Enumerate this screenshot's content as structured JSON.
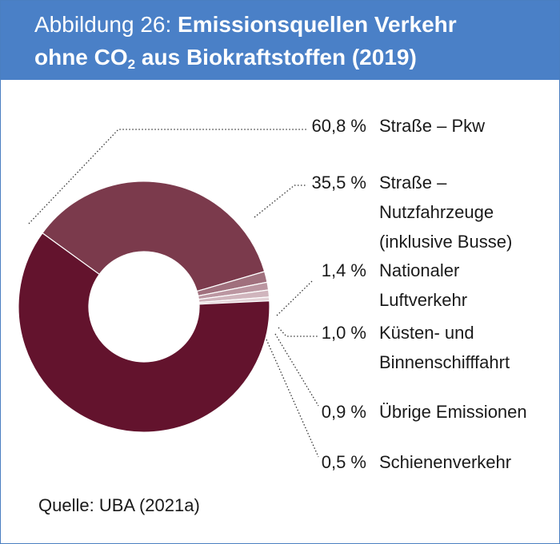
{
  "header": {
    "figure_label": "Abbildung 26:",
    "title_line1": "Emissionsquellen Verkehr",
    "title_line2_pre": "ohne CO",
    "title_line2_sub": "2",
    "title_line2_post": " aus Biokraftstoffen (2019)"
  },
  "source": "Quelle: UBA (2021a)",
  "colors": {
    "header_bg": "#4a80c7",
    "slice_pkw": "#63132d",
    "slice_nutzfahrzeuge": "#7b3a4c",
    "slice_small": [
      "#a0707d",
      "#bb96a1",
      "#d0b5bd",
      "#e3d2d7"
    ]
  },
  "chart_data": {
    "type": "pie",
    "variant": "donut",
    "slices": [
      {
        "label": "Straße – Pkw",
        "label_lines": [
          "Straße – Pkw"
        ],
        "value": 60.8,
        "value_label": "60,8 %"
      },
      {
        "label": "Straße – Nutzfahrzeuge (inklusive Busse)",
        "label_lines": [
          "Straße –",
          "Nutzfahrzeuge",
          "(inklusive Busse)"
        ],
        "value": 35.5,
        "value_label": "35,5 %"
      },
      {
        "label": "Nationaler Luftverkehr",
        "label_lines": [
          "Nationaler",
          "Luftverkehr"
        ],
        "value": 1.4,
        "value_label": "1,4 %"
      },
      {
        "label": "Küsten- und Binnenschifffahrt",
        "label_lines": [
          "Küsten- und",
          "Binnenschifffahrt"
        ],
        "value": 1.0,
        "value_label": "1,0 %"
      },
      {
        "label": "Übrige Emissionen",
        "label_lines": [
          "Übrige Emissionen"
        ],
        "value": 0.9,
        "value_label": "0,9 %"
      },
      {
        "label": "Schienenverkehr",
        "label_lines": [
          "Schienenverkehr"
        ],
        "value": 0.5,
        "value_label": "0,5 %"
      }
    ]
  }
}
